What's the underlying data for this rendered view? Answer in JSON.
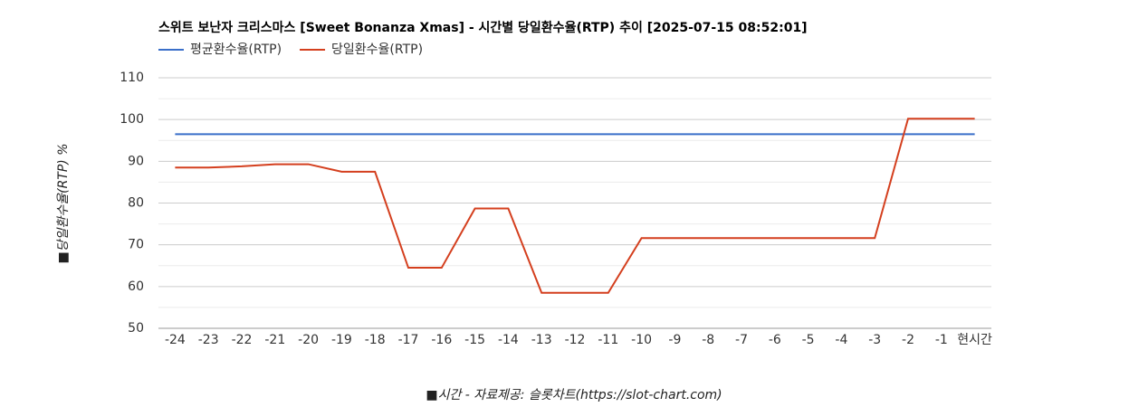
{
  "chart_data": {
    "type": "line",
    "title": "스위트 보난자 크리스마스 [Sweet Bonanza Xmas] - 시간별 당일환수율(RTP) 추이 [2025-07-15 08:52:01]",
    "y_label": "■당일환수율(RTP) %",
    "x_label": "■시간 - 자료제공: 슬롯차트(https://slot-chart.com)",
    "categories": [
      "-24",
      "-23",
      "-22",
      "-21",
      "-20",
      "-19",
      "-18",
      "-17",
      "-16",
      "-15",
      "-14",
      "-13",
      "-12",
      "-11",
      "-10",
      "-9",
      "-8",
      "-7",
      "-6",
      "-5",
      "-4",
      "-3",
      "-2",
      "-1",
      "현시간"
    ],
    "series": [
      {
        "name": "평균환수율(RTP)",
        "color": "#3a6fc9",
        "values": [
          96.5,
          96.5,
          96.5,
          96.5,
          96.5,
          96.5,
          96.5,
          96.5,
          96.5,
          96.5,
          96.5,
          96.5,
          96.5,
          96.5,
          96.5,
          96.5,
          96.5,
          96.5,
          96.5,
          96.5,
          96.5,
          96.5,
          96.5,
          96.5,
          96.5
        ]
      },
      {
        "name": "당일환수율(RTP)",
        "color": "#d43f1e",
        "values": [
          88.5,
          88.5,
          88.8,
          89.3,
          89.3,
          87.5,
          87.5,
          64.5,
          64.5,
          78.7,
          78.7,
          58.5,
          58.5,
          58.5,
          71.6,
          71.6,
          71.6,
          71.6,
          71.6,
          71.6,
          71.6,
          71.6,
          100.2,
          100.2,
          100.2
        ]
      }
    ],
    "ylim": [
      50,
      110
    ],
    "yticks": [
      50,
      60,
      70,
      80,
      90,
      100,
      110
    ],
    "minor_yticks": [
      55,
      65,
      75,
      85,
      95,
      105
    ],
    "grid": true,
    "legend": "top-left"
  }
}
